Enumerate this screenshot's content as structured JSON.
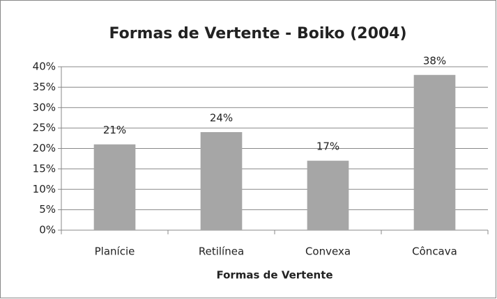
{
  "chart_data": {
    "type": "bar",
    "title": "Formas de Vertente - Boiko (2004)",
    "x_label": "Formas de Vertente",
    "categories": [
      "Planície",
      "Retilínea",
      "Convexa",
      "Côncava"
    ],
    "values": [
      21,
      24,
      17,
      38
    ],
    "value_labels": [
      "21%",
      "24%",
      "17%",
      "38%"
    ],
    "color": "#a6a6a6",
    "ylim": [
      0,
      40
    ],
    "yticks": [
      {
        "value": 0,
        "label": "0%"
      },
      {
        "value": 5,
        "label": "5%"
      },
      {
        "value": 10,
        "label": "10%"
      },
      {
        "value": 15,
        "label": "15%"
      },
      {
        "value": 20,
        "label": "20%"
      },
      {
        "value": 25,
        "label": "25%"
      },
      {
        "value": 30,
        "label": "30%"
      },
      {
        "value": 35,
        "label": "35%"
      },
      {
        "value": 40,
        "label": "40%"
      }
    ],
    "grid": true
  }
}
